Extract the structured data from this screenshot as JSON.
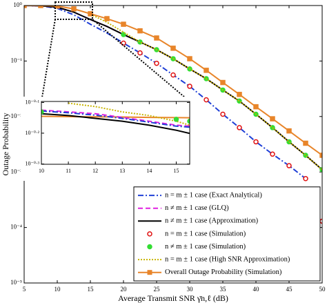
{
  "chart_data": [
    {
      "type": "line",
      "log_y": true,
      "legend": "lower right",
      "xlabel": "Average Transmit SNR γ̄n,ℓ (dB)",
      "ylabel": "Outage Probability",
      "x": [
        5,
        7.5,
        10,
        12.5,
        15,
        17.5,
        20,
        22.5,
        25,
        27.5,
        30,
        32.5,
        35,
        37.5,
        40,
        42.5,
        45,
        47.5,
        50
      ],
      "xlim": [
        5,
        50
      ],
      "xticks": [
        5,
        10,
        15,
        20,
        25,
        30,
        35,
        40,
        45,
        50
      ],
      "ylim": [
        1e-05,
        1
      ],
      "yticks": [
        {
          "value": 1,
          "label": "10⁰"
        },
        {
          "value": 0.1,
          "label": "10⁻¹"
        },
        {
          "value": 0.01,
          "label": "10⁻²"
        },
        {
          "value": 0.001,
          "label": "10⁻³"
        },
        {
          "value": 0.0001,
          "label": "10⁻⁴"
        },
        {
          "value": 1e-05,
          "label": "10⁻⁵"
        }
      ],
      "series": [
        {
          "name": "n = m ± 1 case (Exact Analytical)",
          "color": "#1f3fd6",
          "dash": "dashdot",
          "marker": "none",
          "values": [
            1,
            0.99,
            0.89,
            0.68,
            0.46,
            0.32,
            0.21,
            0.14,
            0.091,
            0.056,
            0.035,
            0.02,
            0.011,
            0.0063,
            0.0035,
            0.0021,
            0.0013,
            0.00076,
            null
          ]
        },
        {
          "name": "n ≠ m ± 1 case (GLQ)",
          "color": "#e020e0",
          "dash": "dashed",
          "marker": "none",
          "values": [
            1,
            0.99,
            0.93,
            0.76,
            0.56,
            0.42,
            0.3,
            0.22,
            0.16,
            0.11,
            0.072,
            0.048,
            0.03,
            0.019,
            0.011,
            0.0063,
            0.0035,
            0.002,
            0.0011
          ]
        },
        {
          "name": "n ≠ m ± 1 case (Approximation)",
          "color": "#000000",
          "dash": "solid",
          "marker": "none",
          "values": [
            1,
            0.99,
            0.93,
            0.76,
            0.56,
            0.42,
            0.3,
            0.22,
            0.16,
            0.11,
            0.072,
            0.048,
            0.03,
            0.019,
            0.011,
            0.0063,
            0.0035,
            0.002,
            0.0011
          ]
        },
        {
          "name": "n = m ± 1 case (Simulation)",
          "color": "#e01010",
          "dash": "none",
          "marker": "circle",
          "marker_fill": "#ffffff",
          "values": [
            null,
            null,
            null,
            null,
            null,
            null,
            0.21,
            0.14,
            0.091,
            0.056,
            0.035,
            0.02,
            0.011,
            0.0063,
            0.0035,
            0.0021,
            0.0013,
            0.00076,
            0.00013
          ]
        },
        {
          "name": "n ≠ m ± 1 case (Simulation)",
          "color": "#33dd33",
          "dash": "none",
          "marker": "circle",
          "marker_fill": "#33dd33",
          "values": [
            null,
            null,
            null,
            null,
            null,
            null,
            0.3,
            0.22,
            0.16,
            0.11,
            0.072,
            0.048,
            0.03,
            0.019,
            0.011,
            0.0063,
            0.0035,
            0.002,
            0.0011
          ]
        },
        {
          "name": "n = m ± 1 case (High SNR Approximation)",
          "color": "#c8b400",
          "dash": "dotted",
          "marker": "none",
          "values": [
            null,
            null,
            null,
            null,
            0.7,
            0.5,
            0.33,
            0.22,
            0.16,
            0.11,
            0.072,
            0.048,
            0.03,
            0.019,
            0.011,
            0.0063,
            0.0035,
            0.002,
            0.0011
          ]
        },
        {
          "name": "Overall Outage Probability (Simulation)",
          "color": "#e8852a",
          "dash": "solid",
          "marker": "square",
          "marker_fill": "#e8852a",
          "values": [
            1,
            1,
            0.98,
            0.87,
            0.71,
            0.58,
            0.46,
            0.35,
            0.26,
            0.17,
            0.11,
            0.068,
            0.041,
            0.025,
            0.015,
            0.0091,
            0.0055,
            0.0033,
            0.002
          ]
        }
      ]
    },
    {
      "type": "line",
      "log_y": true,
      "x": [
        10,
        11,
        12,
        13,
        14,
        15,
        15.5
      ],
      "xlim": [
        10,
        15.5
      ],
      "xticks": [
        10,
        11,
        12,
        13,
        14,
        15
      ],
      "ylim": [
        0.5,
        0.8
      ],
      "yticks": [
        {
          "value": 0.794,
          "label": "10⁻⁰·¹"
        },
        {
          "value": 0.631,
          "label": "10⁻⁰·²"
        },
        {
          "value": 0.501,
          "label": "10⁻⁰·³"
        }
      ],
      "series": [
        {
          "color": "#e8852a",
          "dash": "solid",
          "marker": "none",
          "values": [
            0.716,
            0.714,
            0.713,
            0.712,
            0.71,
            0.709,
            0.708
          ]
        },
        {
          "color": "#c8b400",
          "dash": "dotted",
          "marker": "none",
          "values": [
            null,
            0.79,
            0.77,
            0.74,
            0.72,
            0.69,
            0.67
          ]
        },
        {
          "color": "#e020e0",
          "dash": "dashed",
          "marker": "none",
          "values": [
            0.75,
            0.74,
            0.73,
            0.71,
            0.69,
            0.67,
            0.665
          ]
        },
        {
          "color": "#1f3fd6",
          "dash": "dashdot",
          "marker": "none",
          "values": [
            0.745,
            0.735,
            0.722,
            0.705,
            0.685,
            0.665,
            0.66
          ]
        },
        {
          "color": "#000000",
          "dash": "solid",
          "marker": "none",
          "values": [
            0.73,
            0.72,
            0.705,
            0.69,
            0.67,
            0.645,
            0.63
          ]
        },
        {
          "color": "#33dd33",
          "dash": "none",
          "marker": "circle",
          "marker_fill": "#33dd33",
          "values": [
            0.74,
            null,
            null,
            null,
            null,
            0.7,
            0.69
          ]
        }
      ]
    }
  ]
}
